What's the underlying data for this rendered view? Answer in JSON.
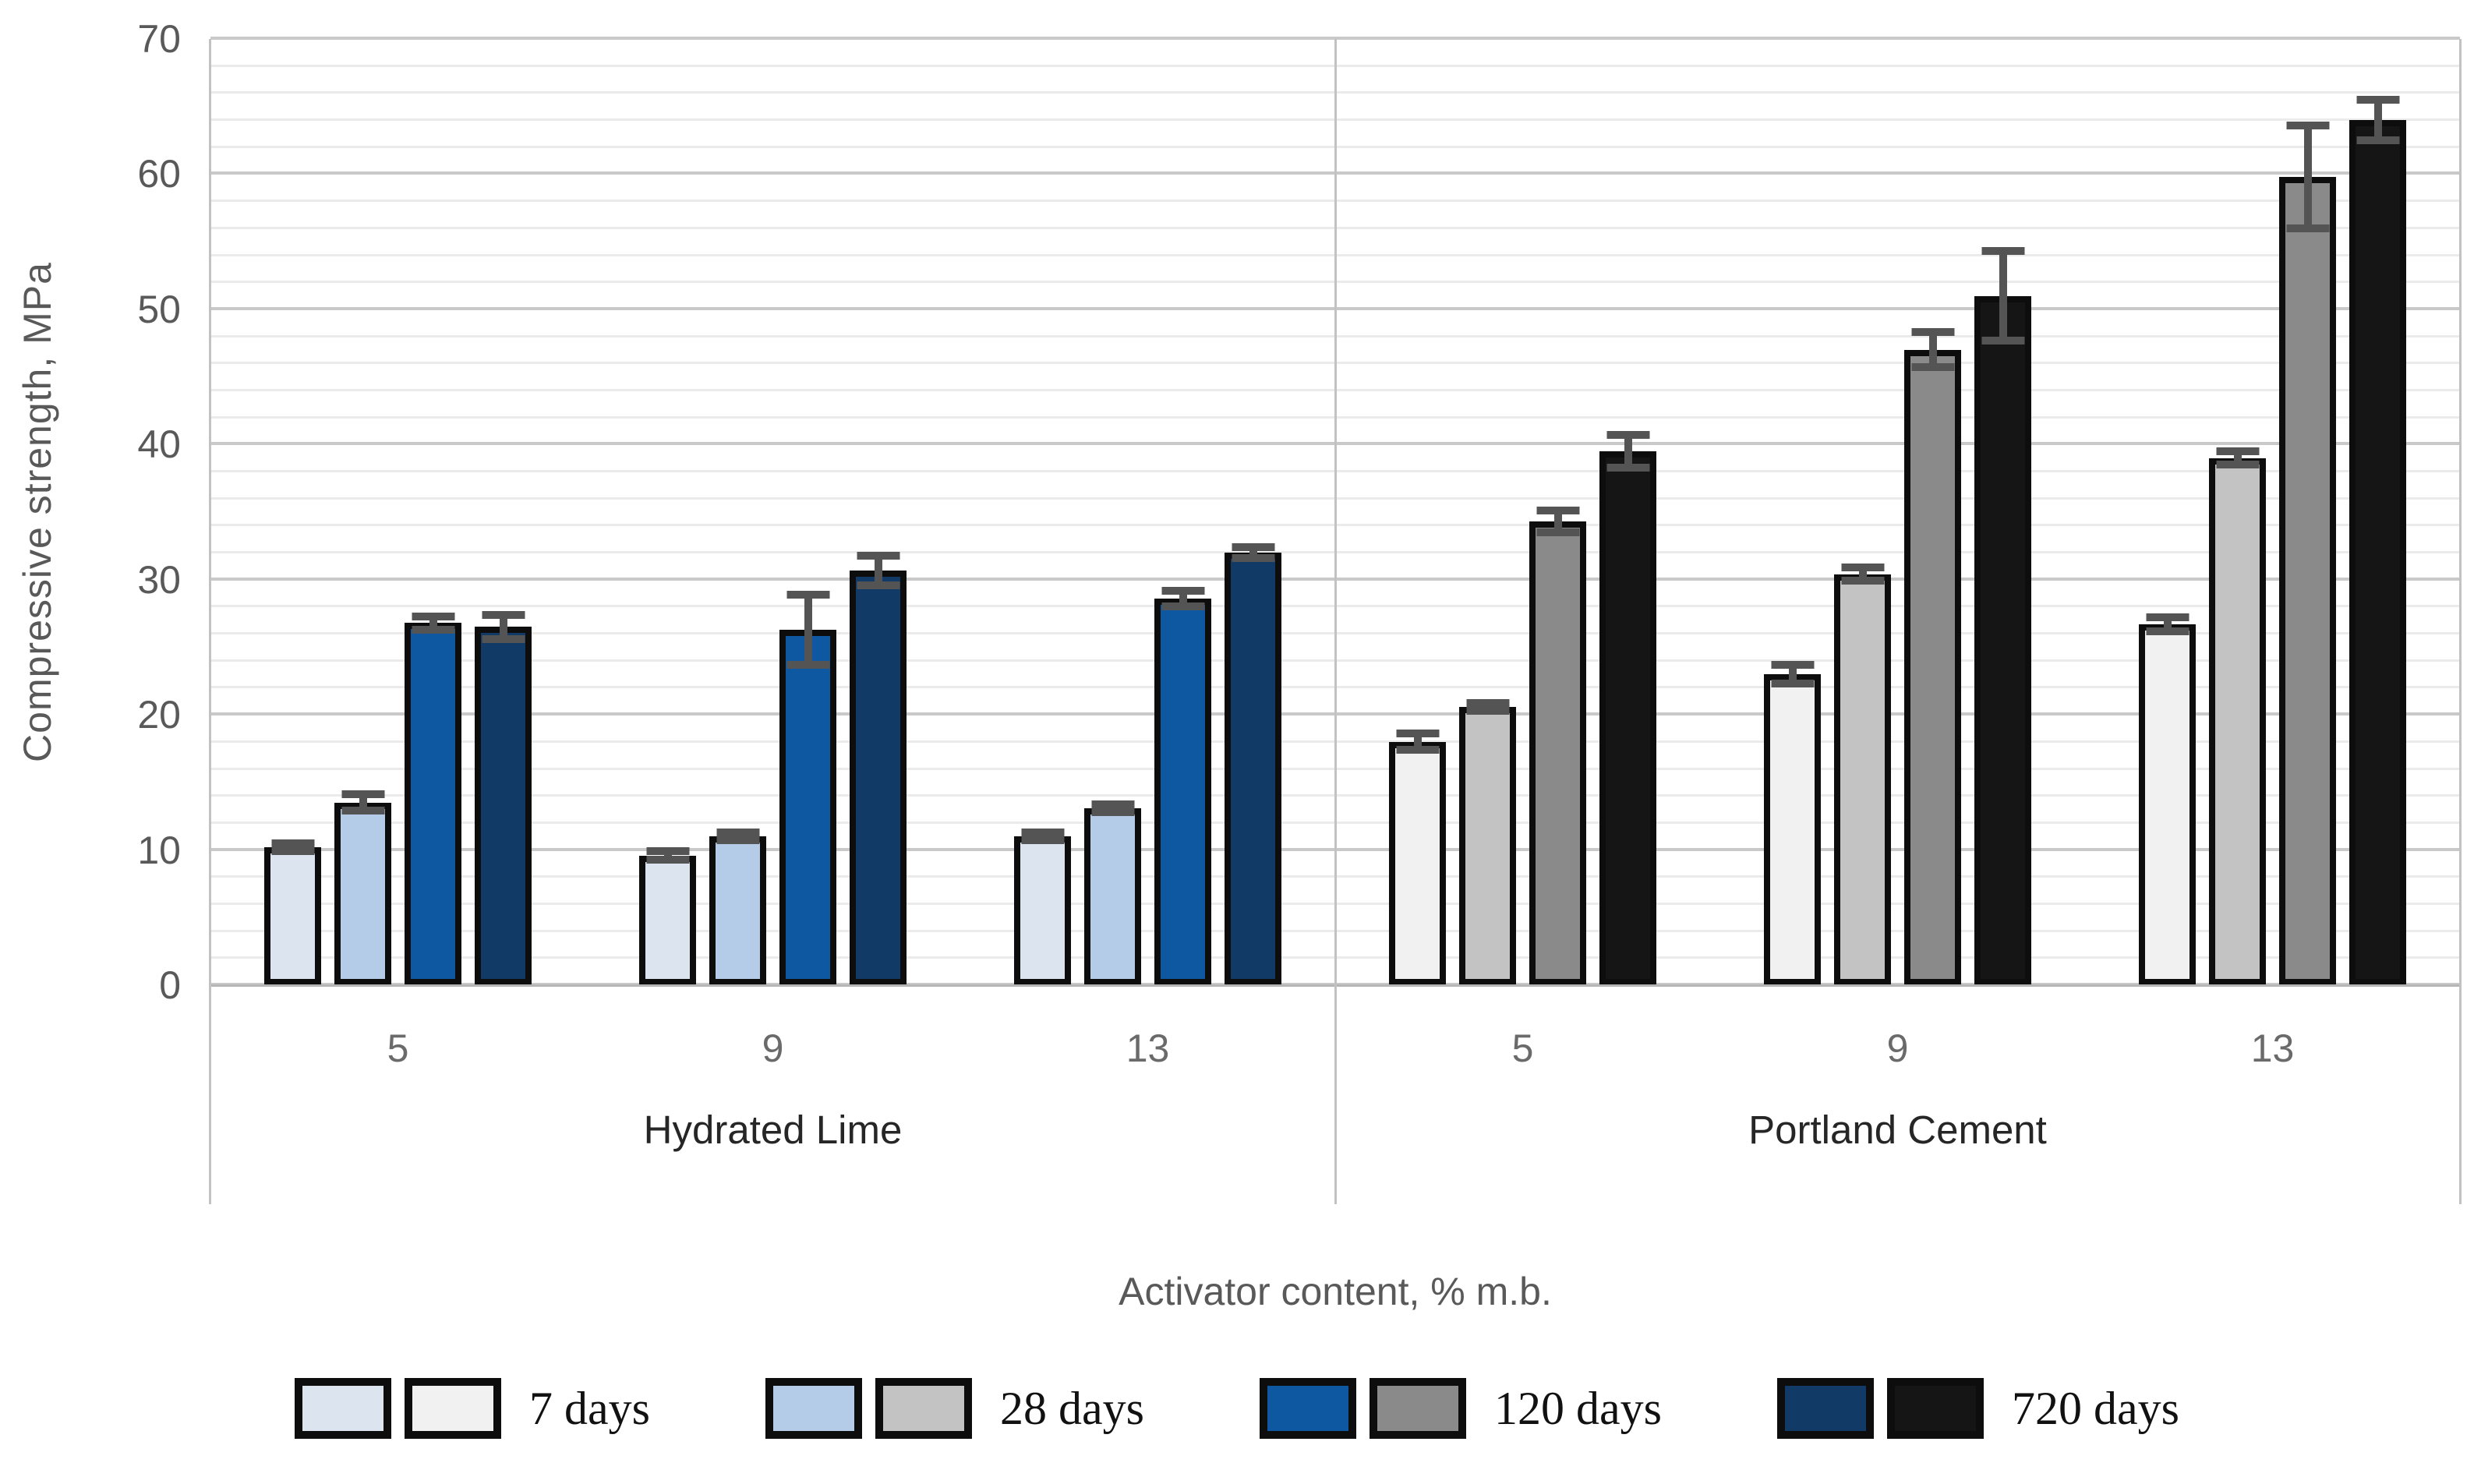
{
  "chart_data": {
    "type": "bar",
    "title": "",
    "ylabel": "Compressive strength, MPa",
    "xlabel": "Activator content, % m.b.",
    "ylim": [
      0,
      70
    ],
    "y_major_step": 10,
    "y_minor_step": 2,
    "grid": "horizontal only: minor line every 2 MPa, darker major line every 10 MPa",
    "legend_position": "bottom",
    "error_bars": true,
    "panels": [
      {
        "label": "Hydrated Lime",
        "categories": [
          "5",
          "9",
          "13"
        ],
        "series": [
          {
            "name": "7 days",
            "color": "#dce4f0",
            "values": [
              10.2,
              9.6,
              11.0
            ],
            "errors": [
              0.3,
              0.3,
              0.3
            ]
          },
          {
            "name": "28 days",
            "color": "#b5cce9",
            "values": [
              13.5,
              11.0,
              13.1
            ],
            "errors": [
              0.6,
              0.3,
              0.3
            ]
          },
          {
            "name": "120 days",
            "color": "#0e58a2",
            "values": [
              26.8,
              26.3,
              28.6
            ],
            "errors": [
              0.5,
              2.6,
              0.6
            ]
          },
          {
            "name": "720 days",
            "color": "#123a66",
            "values": [
              26.5,
              30.7,
              32.0
            ],
            "errors": [
              0.9,
              1.1,
              0.4
            ]
          }
        ]
      },
      {
        "label": "Portland Cement",
        "categories": [
          "5",
          "9",
          "13"
        ],
        "series": [
          {
            "name": "7 days",
            "color": "#f1f1f1",
            "values": [
              18.0,
              23.0,
              26.7
            ],
            "errors": [
              0.6,
              0.7,
              0.5
            ]
          },
          {
            "name": "28 days",
            "color": "#c3c3c3",
            "values": [
              20.6,
              30.4,
              39.0
            ],
            "errors": [
              0.3,
              0.5,
              0.5
            ]
          },
          {
            "name": "120 days",
            "color": "#8a8a8a",
            "values": [
              34.3,
              47.0,
              59.8
            ],
            "errors": [
              0.8,
              1.3,
              3.8
            ]
          },
          {
            "name": "720 days",
            "color": "#151515",
            "values": [
              39.5,
              51.0,
              64.0
            ],
            "errors": [
              1.2,
              3.3,
              1.5
            ]
          }
        ]
      }
    ],
    "legend": [
      {
        "label": "7 days",
        "swatches": [
          "#dce4f0",
          "#f1f1f1"
        ]
      },
      {
        "label": "28 days",
        "swatches": [
          "#b5cce9",
          "#c3c3c3"
        ]
      },
      {
        "label": "120 days",
        "swatches": [
          "#0e58a2",
          "#8a8a8a"
        ]
      },
      {
        "label": "720 days",
        "swatches": [
          "#123a66",
          "#151515"
        ]
      }
    ],
    "colors": {
      "grid_minor": "#ebebeb",
      "grid_major": "#c9c9c9",
      "axis_line": "#c2c2c2",
      "baseline": "#b5b5b5",
      "bar_border": "#0d0d0d",
      "error_bar": "#545454",
      "tick_text": "#595959",
      "category_text": "#6a6a6a",
      "group_text": "#262626",
      "axis_title_text": "#595959",
      "legend_text": "#111111"
    }
  }
}
